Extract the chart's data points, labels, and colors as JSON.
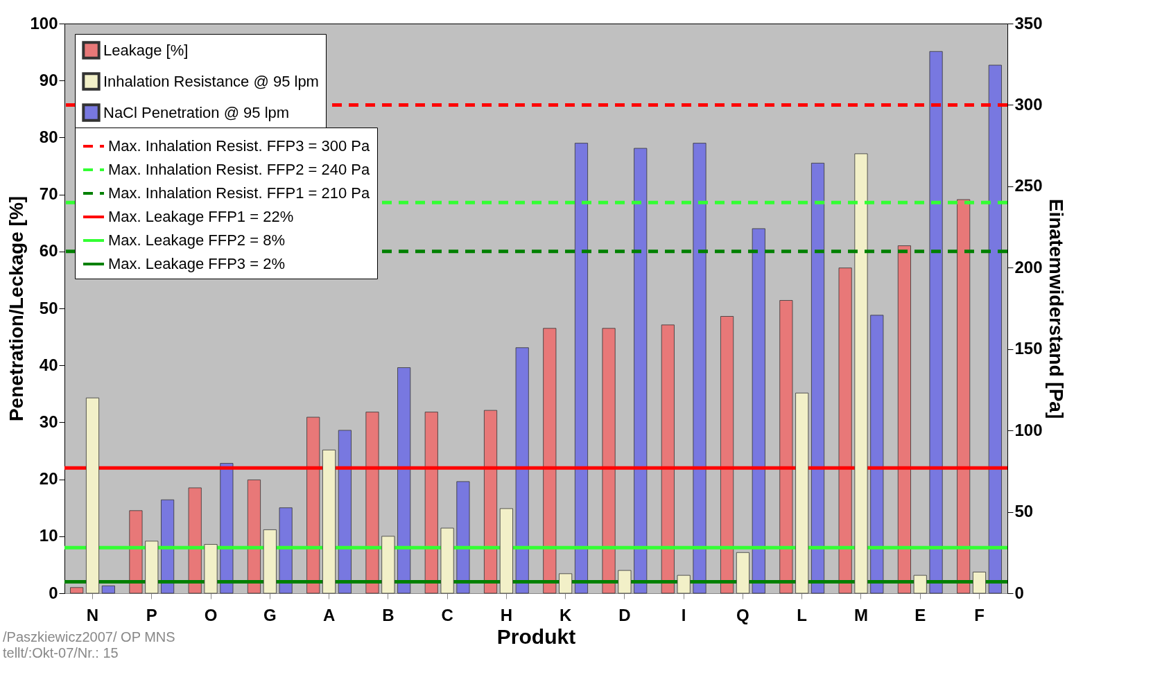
{
  "chart_data": {
    "type": "bar",
    "xlabel": "Produkt",
    "ylabel": "Penetration/Leckage [%]",
    "y2label": "Einatemwiderstand [Pa]",
    "categories": [
      "N",
      "P",
      "O",
      "G",
      "A",
      "B",
      "C",
      "H",
      "K",
      "D",
      "I",
      "Q",
      "L",
      "M",
      "E",
      "F"
    ],
    "series": [
      {
        "name": "Leakage [%]",
        "color": "#e87878",
        "values": [
          1.0,
          14.5,
          18.5,
          19.9,
          30.9,
          31.8,
          31.8,
          32.1,
          46.5,
          46.5,
          47.1,
          48.6,
          51.4,
          57.1,
          61.0,
          69.1
        ]
      },
      {
        "name": "Inhalation Resistance @ 95 lpm",
        "color": "#f2f0c8",
        "axis": "y2",
        "values": [
          120,
          32,
          30,
          39,
          88,
          35,
          40,
          52,
          12,
          14,
          11,
          25,
          123,
          270,
          11,
          13
        ]
      },
      {
        "name": "NaCl Penetration @ 95 lpm",
        "color": "#7878e0",
        "values": [
          1.3,
          16.4,
          22.8,
          15.0,
          28.6,
          39.6,
          19.6,
          43.1,
          79.0,
          78.1,
          79.0,
          64.0,
          75.5,
          48.8,
          95.1,
          92.7
        ]
      }
    ],
    "ylim": [
      0,
      100
    ],
    "yticks": [
      0,
      10,
      20,
      30,
      40,
      50,
      60,
      70,
      80,
      90,
      100
    ],
    "y2lim": [
      0,
      350
    ],
    "y2ticks": [
      0,
      50,
      100,
      150,
      200,
      250,
      300,
      350
    ],
    "ref_lines": [
      {
        "axis": "y2",
        "value": 300,
        "label": "Max. Inhalation Resist. FFP3 = 300 Pa",
        "color": "#ff0000",
        "line_style": "dashed"
      },
      {
        "axis": "y2",
        "value": 240,
        "label": "Max. Inhalation Resist. FFP2 = 240 Pa",
        "color": "#33ff33",
        "line_style": "dashed"
      },
      {
        "axis": "y2",
        "value": 210,
        "label": "Max. Inhalation Resist. FFP1 = 210 Pa",
        "color": "#008000",
        "line_style": "dashed"
      },
      {
        "axis": "y",
        "value": 22,
        "label": "Max. Leakage FFP1 = 22%",
        "color": "#ff0000",
        "line_style": "solid"
      },
      {
        "axis": "y",
        "value": 8,
        "label": "Max. Leakage FFP2 = 8%",
        "color": "#33ff33",
        "line_style": "solid"
      },
      {
        "axis": "y",
        "value": 2,
        "label": "Max. Leakage FFP3 = 2%",
        "color": "#008000",
        "line_style": "solid"
      }
    ],
    "grid": false,
    "legend": "top left",
    "annotations": [
      "/Paszkiewicz2007/ OP MNS",
      "tellt/:Okt-07/Nr.: 15"
    ]
  }
}
